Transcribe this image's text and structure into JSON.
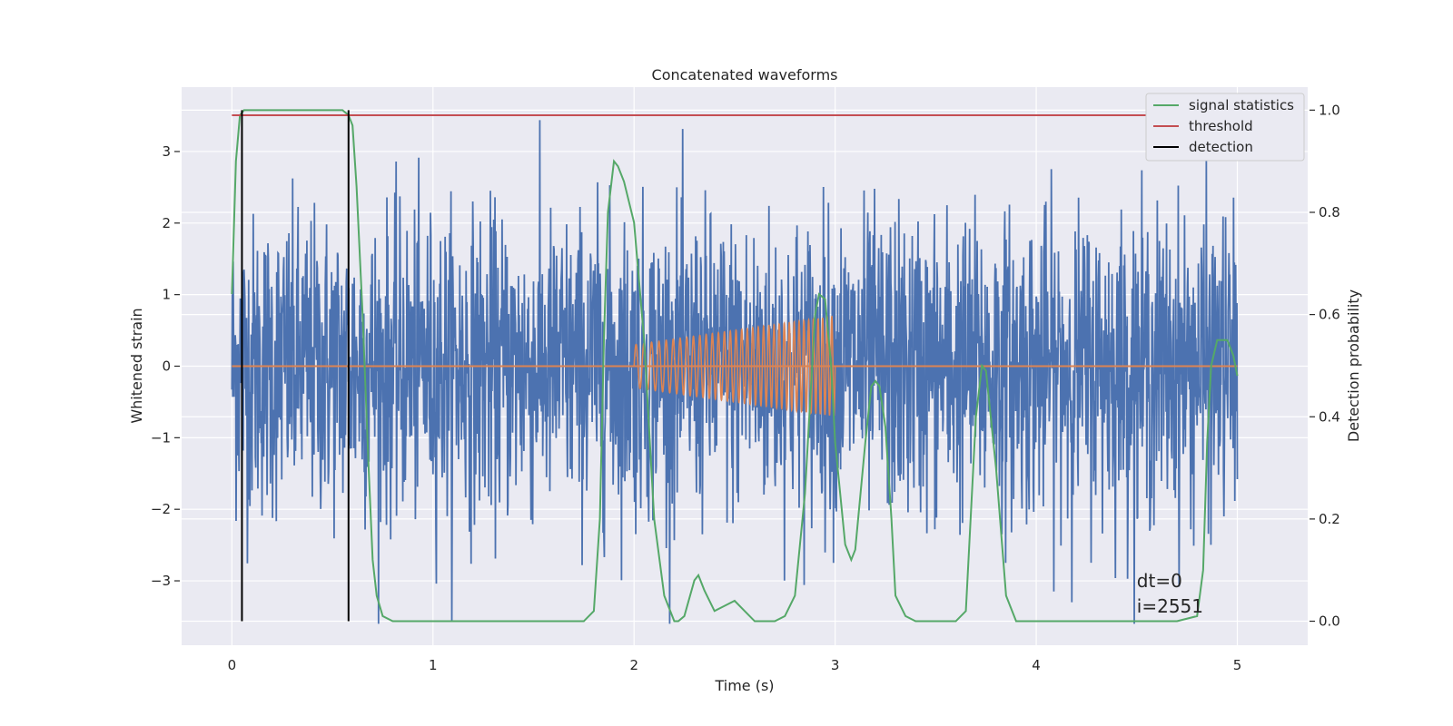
{
  "chart_data": {
    "type": "line",
    "title": "Concatenated waveforms",
    "xlabel": "Time (s)",
    "ylabel": "Whitened strain",
    "y2label": "Detection probability",
    "xlim": [
      -0.25,
      5.35
    ],
    "ylim": [
      -3.9,
      3.9
    ],
    "y2lim": [
      -0.047,
      1.045
    ],
    "xticks": [
      "0",
      "1",
      "2",
      "3",
      "4",
      "5"
    ],
    "yticks": [
      "3",
      "2",
      "1",
      "0",
      "−1",
      "−2",
      "−3"
    ],
    "y2ticks": [
      "1.0",
      "0.8",
      "0.6",
      "0.4",
      "0.2",
      "0.0"
    ],
    "grid": true,
    "legend_position": "top-right",
    "colors": {
      "background": "#eaeaf2",
      "grid": "#ffffff",
      "noise": "#4c72b0",
      "signal": "#dd8452",
      "statistics": "#55a868",
      "threshold": "#c44e52",
      "detection": "#000000"
    },
    "noise_description": {
      "time_range": [
        0,
        5
      ],
      "max": 3.5,
      "min": -3.6
    },
    "chirp": {
      "t_start": 2.0,
      "t_end": 3.0,
      "amplitude_start": 0.3,
      "amplitude_end": 0.7,
      "freq_start": 25,
      "freq_end": 45
    },
    "series": [
      {
        "name": "signal statistics",
        "axis": "right",
        "x": [
          0,
          0.02,
          0.04,
          0.06,
          0.08,
          0.1,
          0.2,
          0.3,
          0.4,
          0.5,
          0.55,
          0.58,
          0.6,
          0.62,
          0.65,
          0.68,
          0.7,
          0.72,
          0.75,
          0.8,
          1.0,
          1.5,
          1.75,
          1.8,
          1.83,
          1.85,
          1.87,
          1.9,
          1.92,
          1.95,
          2.0,
          2.05,
          2.1,
          2.15,
          2.2,
          2.22,
          2.25,
          2.3,
          2.32,
          2.35,
          2.4,
          2.45,
          2.5,
          2.55,
          2.6,
          2.7,
          2.75,
          2.8,
          2.85,
          2.9,
          2.92,
          2.95,
          2.98,
          3.0,
          3.05,
          3.08,
          3.1,
          3.15,
          3.18,
          3.2,
          3.22,
          3.25,
          3.28,
          3.3,
          3.35,
          3.4,
          3.5,
          3.6,
          3.65,
          3.7,
          3.73,
          3.75,
          3.8,
          3.85,
          3.9,
          4.0,
          4.5,
          4.7,
          4.8,
          4.83,
          4.85,
          4.87,
          4.9,
          4.95,
          4.98,
          5.0
        ],
        "values": [
          0.64,
          0.9,
          0.99,
          1.0,
          1.0,
          1.0,
          1.0,
          1.0,
          1.0,
          1.0,
          1.0,
          0.99,
          0.97,
          0.85,
          0.6,
          0.3,
          0.12,
          0.05,
          0.01,
          0.0,
          0.0,
          0.0,
          0.0,
          0.02,
          0.2,
          0.55,
          0.8,
          0.9,
          0.89,
          0.86,
          0.78,
          0.55,
          0.2,
          0.05,
          0.0,
          0.0,
          0.01,
          0.08,
          0.09,
          0.06,
          0.02,
          0.03,
          0.04,
          0.02,
          0.0,
          0.0,
          0.01,
          0.05,
          0.25,
          0.6,
          0.64,
          0.63,
          0.5,
          0.35,
          0.15,
          0.12,
          0.14,
          0.35,
          0.46,
          0.47,
          0.46,
          0.38,
          0.2,
          0.05,
          0.01,
          0.0,
          0.0,
          0.0,
          0.02,
          0.4,
          0.5,
          0.49,
          0.3,
          0.05,
          0.0,
          0.0,
          0.0,
          0.0,
          0.01,
          0.1,
          0.35,
          0.5,
          0.55,
          0.55,
          0.52,
          0.48
        ]
      },
      {
        "name": "threshold",
        "axis": "right",
        "x": [
          0,
          5
        ],
        "values": [
          0.99,
          0.99
        ]
      },
      {
        "name": "detection",
        "axis": "right",
        "type": "vlines",
        "x": [
          0.05,
          0.58
        ],
        "ymin": 0.0,
        "ymax": 1.0
      }
    ],
    "annotations": [
      "dt=0",
      "i=2551"
    ],
    "annotation_position": [
      4.5,
      -3.0
    ]
  }
}
